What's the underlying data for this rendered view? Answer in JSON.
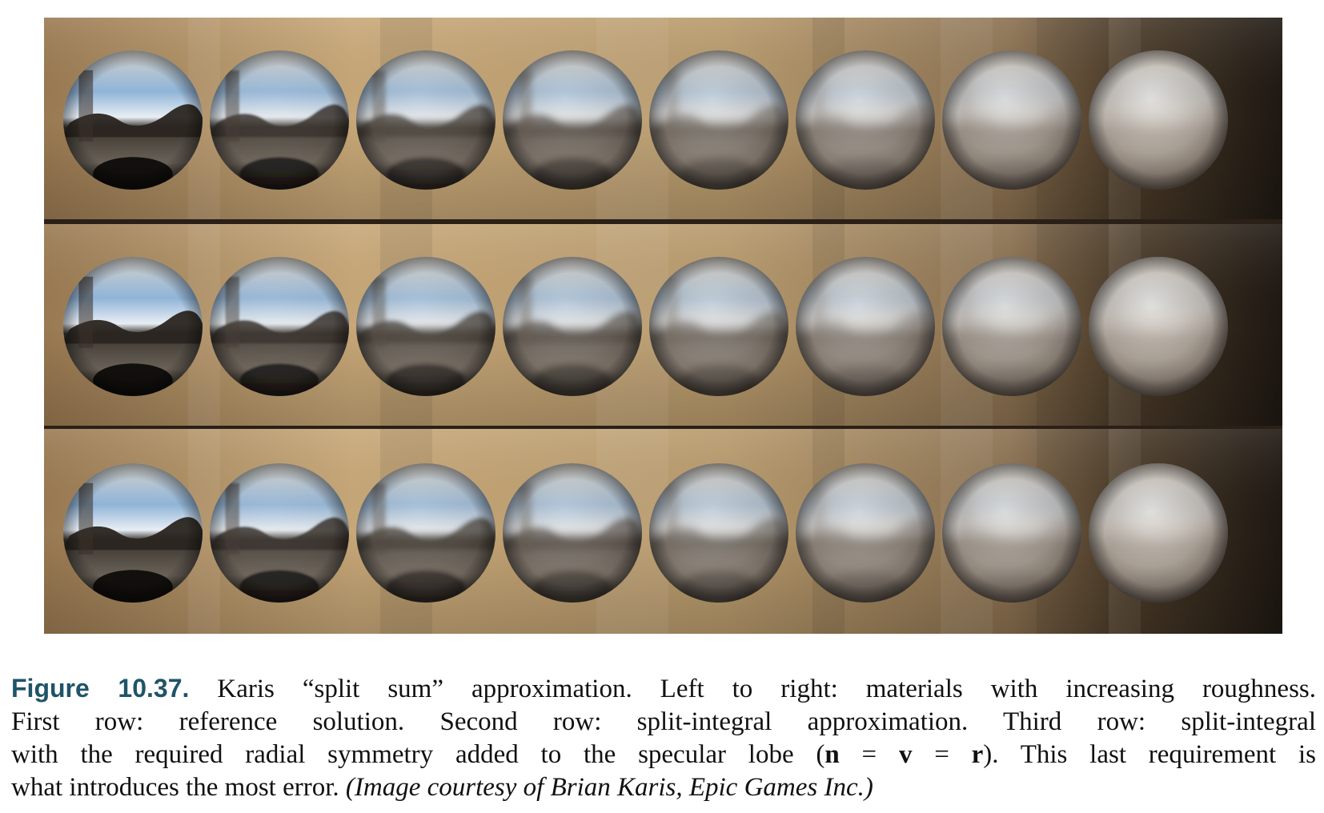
{
  "figure": {
    "rows": [
      {
        "id": "reference"
      },
      {
        "id": "split-integral"
      },
      {
        "id": "split-integral-radial"
      }
    ],
    "spheres_per_row": 8,
    "colors": {
      "backdrop_light": "#c8a878",
      "backdrop_mid": "#9a7a52",
      "backdrop_dark": "#1e1812",
      "chrome_sky": "#8fb4d8",
      "chrome_dark": "#1a1612",
      "rough_sphere": "#b8aea4"
    }
  },
  "caption": {
    "label": "Figure 10.37.",
    "line1_rest": "Karis “split sum” approximation. Left to right: materials with increasing roughness.",
    "line2": "First row: reference solution. Second row: split-integral approximation. Third row: split-integral",
    "line3_a": "with the required radial symmetry added to the specular lobe (",
    "line3_math_n": "n",
    "line3_eq1": " = ",
    "line3_math_v": "v",
    "line3_eq2": " = ",
    "line3_math_r": "r",
    "line3_b": "). This last requirement is",
    "line4_a": "what introduces the most error.",
    "line4_credit": "(Image courtesy of Brian Karis, Epic Games Inc.)"
  }
}
